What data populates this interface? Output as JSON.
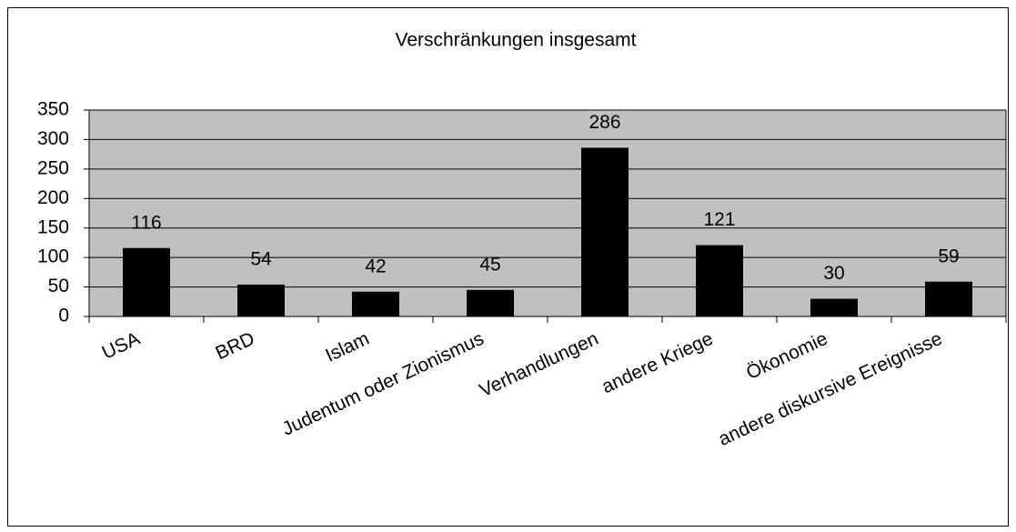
{
  "chart_data": {
    "type": "bar",
    "title": "Verschränkungen insgesamt",
    "categories": [
      "USA",
      "BRD",
      "Islam",
      "Judentum oder Zionismus",
      "Verhandlungen",
      "andere Kriege",
      "Ökonomie",
      "andere diskursive Ereignisse"
    ],
    "values": [
      116,
      54,
      42,
      45,
      286,
      121,
      30,
      59
    ],
    "color": "#000000",
    "ylim": [
      0,
      350
    ],
    "yticks": [
      0,
      50,
      100,
      150,
      200,
      250,
      300,
      350
    ],
    "grid": true
  }
}
